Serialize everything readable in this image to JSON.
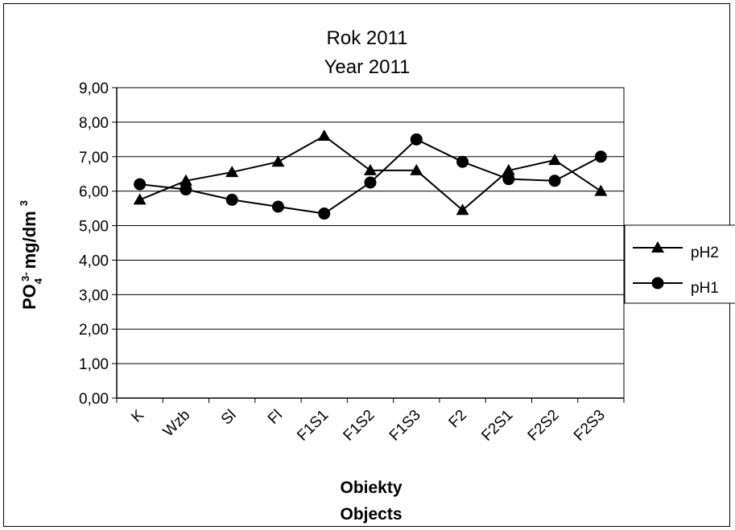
{
  "chart_data": {
    "type": "line",
    "title_line1": "Rok 2011",
    "title_line2": "Year 2011",
    "xlabel_line1": "Obiekty",
    "xlabel_line2": "Objects",
    "ylabel_main": "PO",
    "ylabel_sub": "4",
    "ylabel_sup": "3-",
    "ylabel_unit": "mg/dm",
    "ylabel_unit_sup": "3",
    "categories": [
      "K",
      "Wzb",
      "Sl",
      "Fl",
      "F1S1",
      "F1S2",
      "F1S3",
      "F2",
      "F2S1",
      "F2S2",
      "F2S3"
    ],
    "ylim": [
      0,
      9
    ],
    "yticks": [
      "0,00",
      "1,00",
      "2,00",
      "3,00",
      "4,00",
      "5,00",
      "6,00",
      "7,00",
      "8,00",
      "9,00"
    ],
    "grid": true,
    "legend_position": "right",
    "series": [
      {
        "name": "pH2",
        "marker": "triangle",
        "color": "#000000",
        "values": [
          5.75,
          6.3,
          6.55,
          6.85,
          7.6,
          6.6,
          6.6,
          5.45,
          6.6,
          6.9,
          6.0
        ]
      },
      {
        "name": "pH1",
        "marker": "circle",
        "color": "#000000",
        "values": [
          6.2,
          6.05,
          5.75,
          5.55,
          5.35,
          6.25,
          7.5,
          6.85,
          6.35,
          6.3,
          7.0
        ]
      }
    ]
  }
}
